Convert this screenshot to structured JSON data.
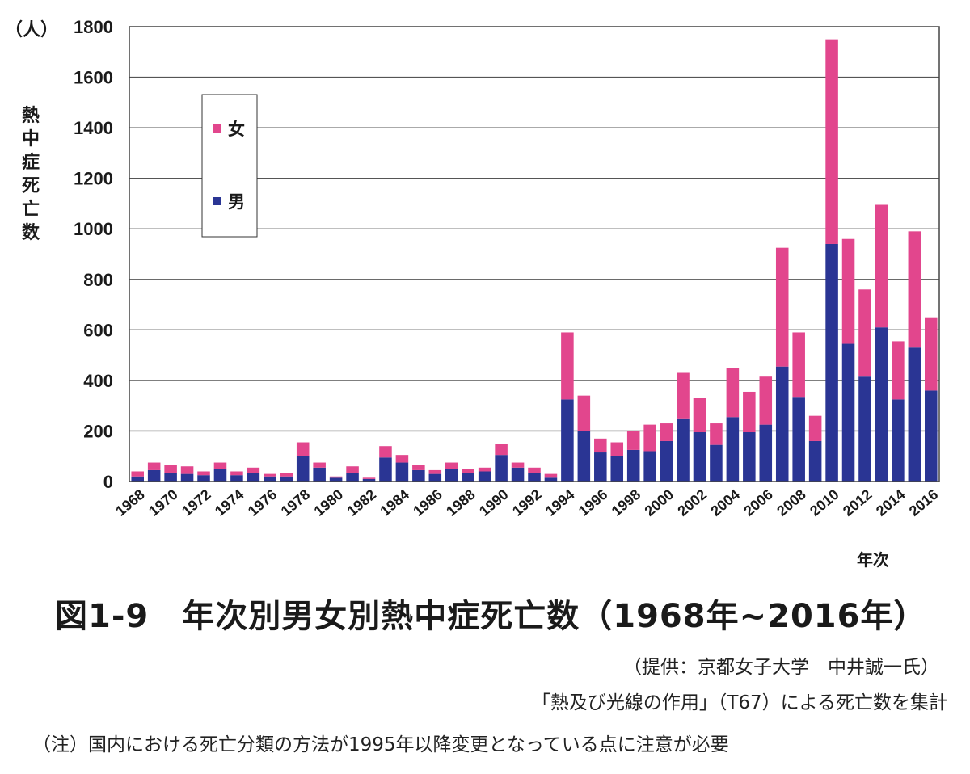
{
  "chart_data": {
    "type": "stacked-bar",
    "title": "図1-9　年次別男女別熱中症死亡数（1968年~2016年）",
    "xlabel": "年次",
    "ylabel": "熱中症死亡数",
    "yunit": "（人）",
    "ylim": [
      0,
      1800
    ],
    "yticks": [
      0,
      200,
      400,
      600,
      800,
      1000,
      1200,
      1400,
      1600,
      1800
    ],
    "grid": true,
    "legend_position": "upper-left",
    "categories": [
      1968,
      1969,
      1970,
      1971,
      1972,
      1973,
      1974,
      1975,
      1976,
      1977,
      1978,
      1979,
      1980,
      1981,
      1982,
      1983,
      1984,
      1985,
      1986,
      1987,
      1988,
      1989,
      1990,
      1991,
      1992,
      1993,
      1994,
      1995,
      1996,
      1997,
      1998,
      1999,
      2000,
      2001,
      2002,
      2003,
      2004,
      2005,
      2006,
      2007,
      2008,
      2009,
      2010,
      2011,
      2012,
      2013,
      2014,
      2015,
      2016
    ],
    "xticklabels": [
      "1968",
      "1970",
      "1972",
      "1974",
      "1976",
      "1978",
      "1980",
      "1982",
      "1984",
      "1986",
      "1988",
      "1990",
      "1992",
      "1994",
      "1996",
      "1998",
      "2000",
      "2002",
      "2004",
      "2006",
      "2008",
      "2010",
      "2012",
      "2014",
      "2016"
    ],
    "series": [
      {
        "name": "男",
        "color": "#2a3594",
        "values": [
          20,
          45,
          35,
          30,
          25,
          50,
          25,
          35,
          20,
          20,
          100,
          55,
          15,
          35,
          10,
          95,
          75,
          45,
          30,
          50,
          35,
          40,
          105,
          55,
          35,
          15,
          325,
          200,
          115,
          100,
          125,
          120,
          160,
          250,
          195,
          145,
          255,
          195,
          225,
          455,
          335,
          160,
          940,
          545,
          415,
          610,
          325,
          530,
          360
        ]
      },
      {
        "name": "女",
        "color": "#e2468d",
        "values": [
          20,
          30,
          30,
          30,
          15,
          25,
          15,
          20,
          10,
          15,
          55,
          20,
          5,
          25,
          5,
          45,
          30,
          20,
          15,
          25,
          15,
          15,
          45,
          20,
          20,
          15,
          265,
          140,
          55,
          55,
          75,
          105,
          70,
          180,
          135,
          85,
          195,
          160,
          190,
          470,
          255,
          100,
          810,
          415,
          345,
          485,
          230,
          460,
          290
        ]
      }
    ]
  },
  "legend": {
    "female": "女",
    "male": "男"
  },
  "notes": {
    "credit": "（提供：京都女子大学　中井誠一氏）",
    "source": "「熱及び光線の作用」（T67）による死亡数を集計",
    "footnote": "（注）国内における死亡分類の方法が1995年以降変更となっている点に注意が必要"
  },
  "colors": {
    "male": "#2a3594",
    "female": "#e2468d",
    "grid": "#555555",
    "axis": "#444444"
  }
}
